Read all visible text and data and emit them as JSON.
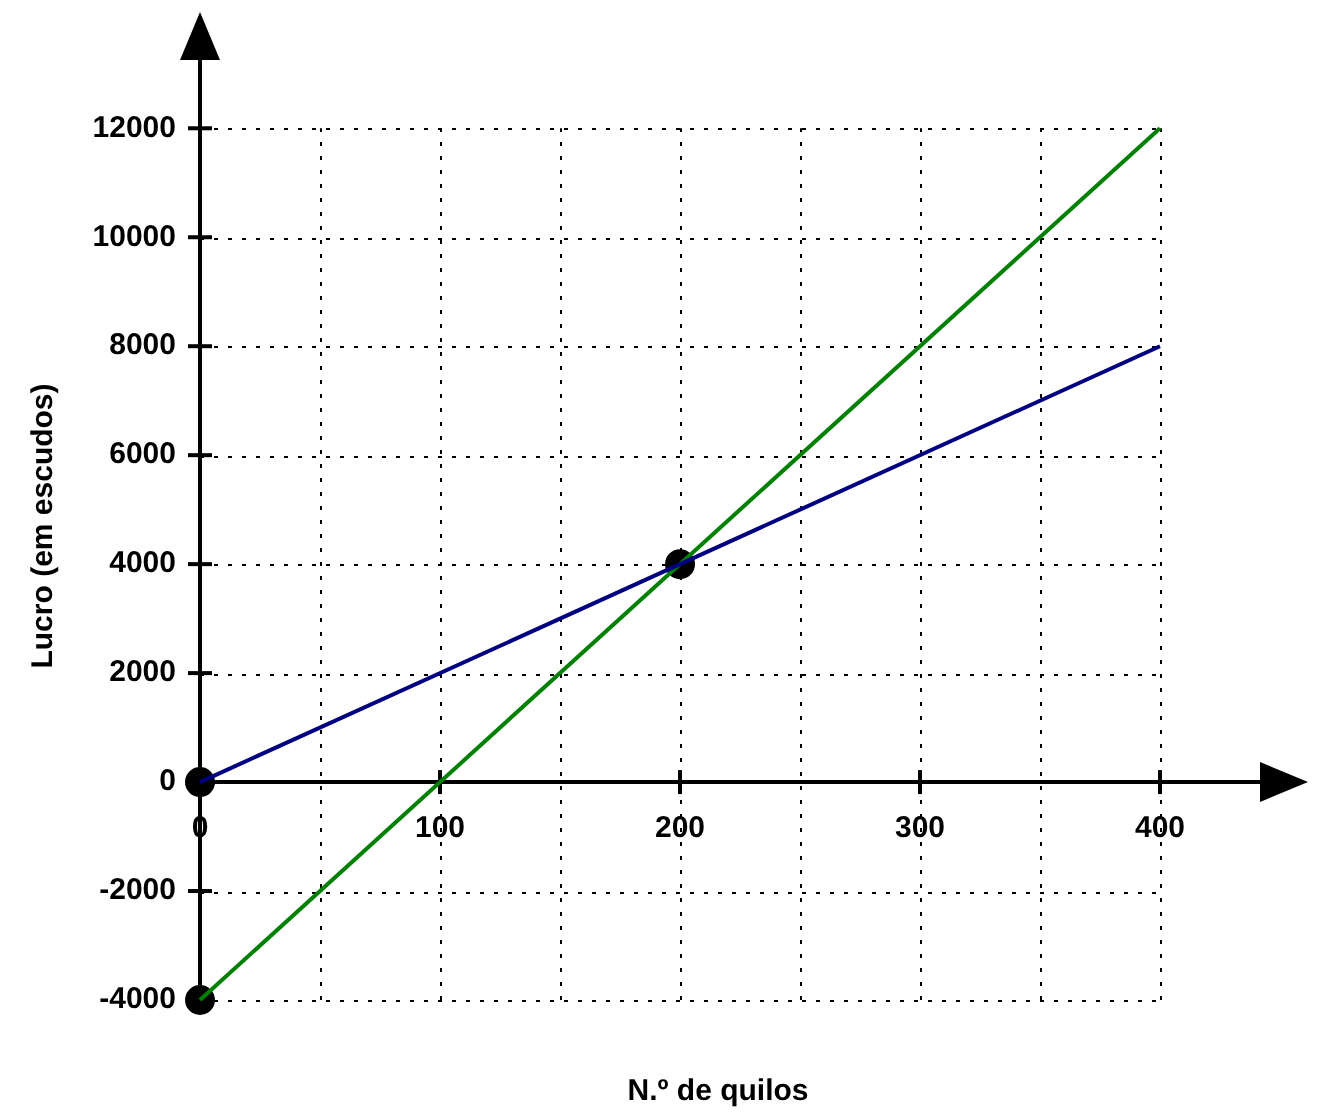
{
  "chart_data": {
    "type": "line",
    "xlabel": "N.º de quilos",
    "ylabel": "Lucro (em escudos)",
    "xlim": [
      0,
      445
    ],
    "ylim": [
      -4000,
      13400
    ],
    "xticks": [
      0,
      {
        "value": 50,
        "label": null
      },
      100,
      {
        "value": 150,
        "label": null
      },
      200,
      {
        "value": 250,
        "label": null
      },
      300,
      {
        "value": 350,
        "label": null
      },
      400
    ],
    "yticks": [
      -4000,
      -2000,
      0,
      2000,
      4000,
      6000,
      8000,
      10000,
      12000
    ],
    "grid": true,
    "legend": false,
    "line_style": "solid",
    "marker": "none",
    "series": [
      {
        "type": "line",
        "color": "#000080",
        "x": [
          0,
          400
        ],
        "values": [
          0,
          8000
        ]
      },
      {
        "type": "line",
        "color": "#008000",
        "x": [
          0,
          400
        ],
        "values": [
          -4000,
          12000
        ]
      },
      {
        "type": "scatter",
        "color": "#000000",
        "marker": "circle",
        "x": [
          0,
          200,
          0
        ],
        "values": [
          0,
          4000,
          -4000
        ]
      }
    ]
  }
}
